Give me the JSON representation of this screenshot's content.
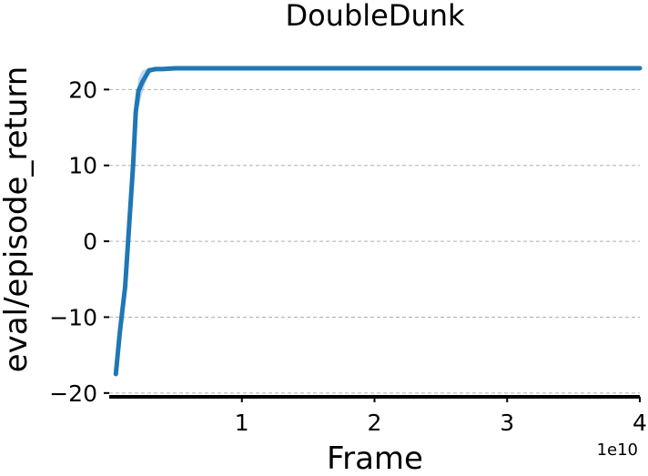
{
  "chart_data": {
    "type": "line",
    "title": "DoubleDunk",
    "xlabel": "Frame",
    "ylabel": "eval/episode_return",
    "x_offset_text": "1e10",
    "xlim": [
      0,
      4.0
    ],
    "ylim": [
      -20.5,
      27
    ],
    "xticks": [
      1,
      2,
      3,
      4
    ],
    "xtick_labels": [
      "1",
      "2",
      "3",
      "4"
    ],
    "yticks": [
      -20,
      -10,
      0,
      10,
      20
    ],
    "ytick_labels": [
      "−20",
      "−10",
      "0",
      "10",
      "20"
    ],
    "grid": "horizontal dashed",
    "colors": {
      "line": "#1f77b4",
      "band": "#a6c8e6"
    },
    "series": [
      {
        "x": [
          0.05,
          0.08,
          0.12,
          0.15,
          0.18,
          0.2,
          0.22,
          0.25,
          0.3,
          0.35,
          0.4,
          0.5,
          0.7,
          1.0,
          1.5,
          2.0,
          2.5,
          3.0,
          3.5,
          4.0
        ],
        "values": [
          -17.5,
          -12,
          -6,
          2,
          10,
          17,
          19.8,
          21,
          22.5,
          22.7,
          22.7,
          22.8,
          22.8,
          22.8,
          22.8,
          22.8,
          22.8,
          22.8,
          22.8,
          22.8
        ],
        "band_low": [
          -17.5,
          -12,
          -6,
          2,
          9,
          15.5,
          17.5,
          19.5,
          22.2,
          22.5,
          22.5,
          22.6,
          22.6,
          22.6,
          22.6,
          22.6,
          22.6,
          22.6,
          22.6,
          22.6
        ],
        "band_high": [
          -17.5,
          -12,
          -6,
          2,
          11,
          18.5,
          21.5,
          22.5,
          22.9,
          22.9,
          22.9,
          23.0,
          23.0,
          23.0,
          23.0,
          23.0,
          23.0,
          23.0,
          23.0,
          23.0
        ]
      }
    ]
  }
}
